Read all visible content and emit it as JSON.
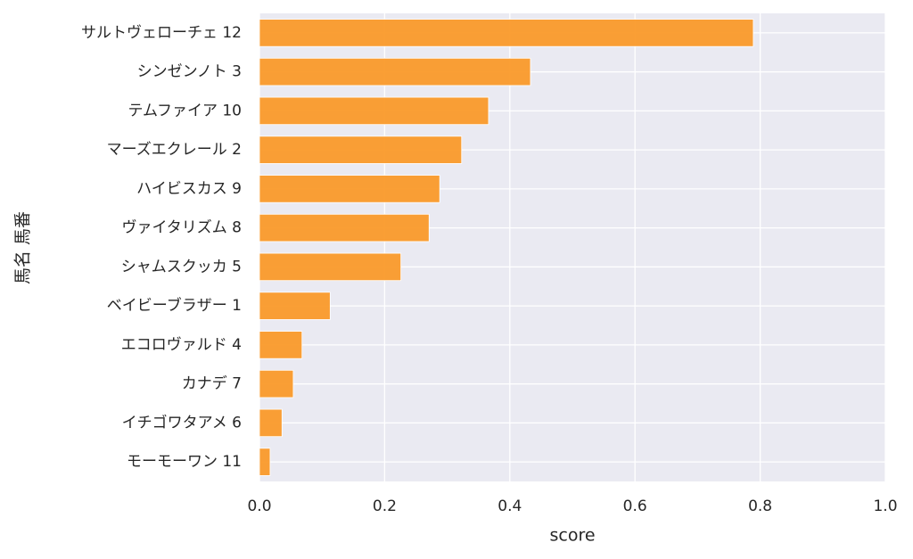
{
  "chart_data": {
    "type": "bar",
    "orientation": "horizontal",
    "xlabel": "score",
    "ylabel": "馬名 馬番",
    "categories": [
      "サルトヴェローチェ 12",
      "シンゼンノト 3",
      "テムファイア 10",
      "マーズエクレール 2",
      "ハイビスカス 9",
      "ヴァイタリズム 8",
      "シャムスクッカ 5",
      "ベイビーブラザー 1",
      "エコロヴァルド 4",
      "カナデ 7",
      "イチゴワタアメ 6",
      "モーモーワン 11"
    ],
    "values": [
      0.789,
      0.433,
      0.366,
      0.323,
      0.288,
      0.271,
      0.226,
      0.113,
      0.068,
      0.054,
      0.036,
      0.017
    ],
    "color": "#fa9a2a",
    "xlim": [
      0,
      1
    ],
    "xticks": [
      {
        "value": 0,
        "label": "0.0"
      },
      0.2,
      0.4,
      0.6,
      0.8,
      {
        "value": 1,
        "label": "1.0"
      }
    ],
    "grid": true
  }
}
